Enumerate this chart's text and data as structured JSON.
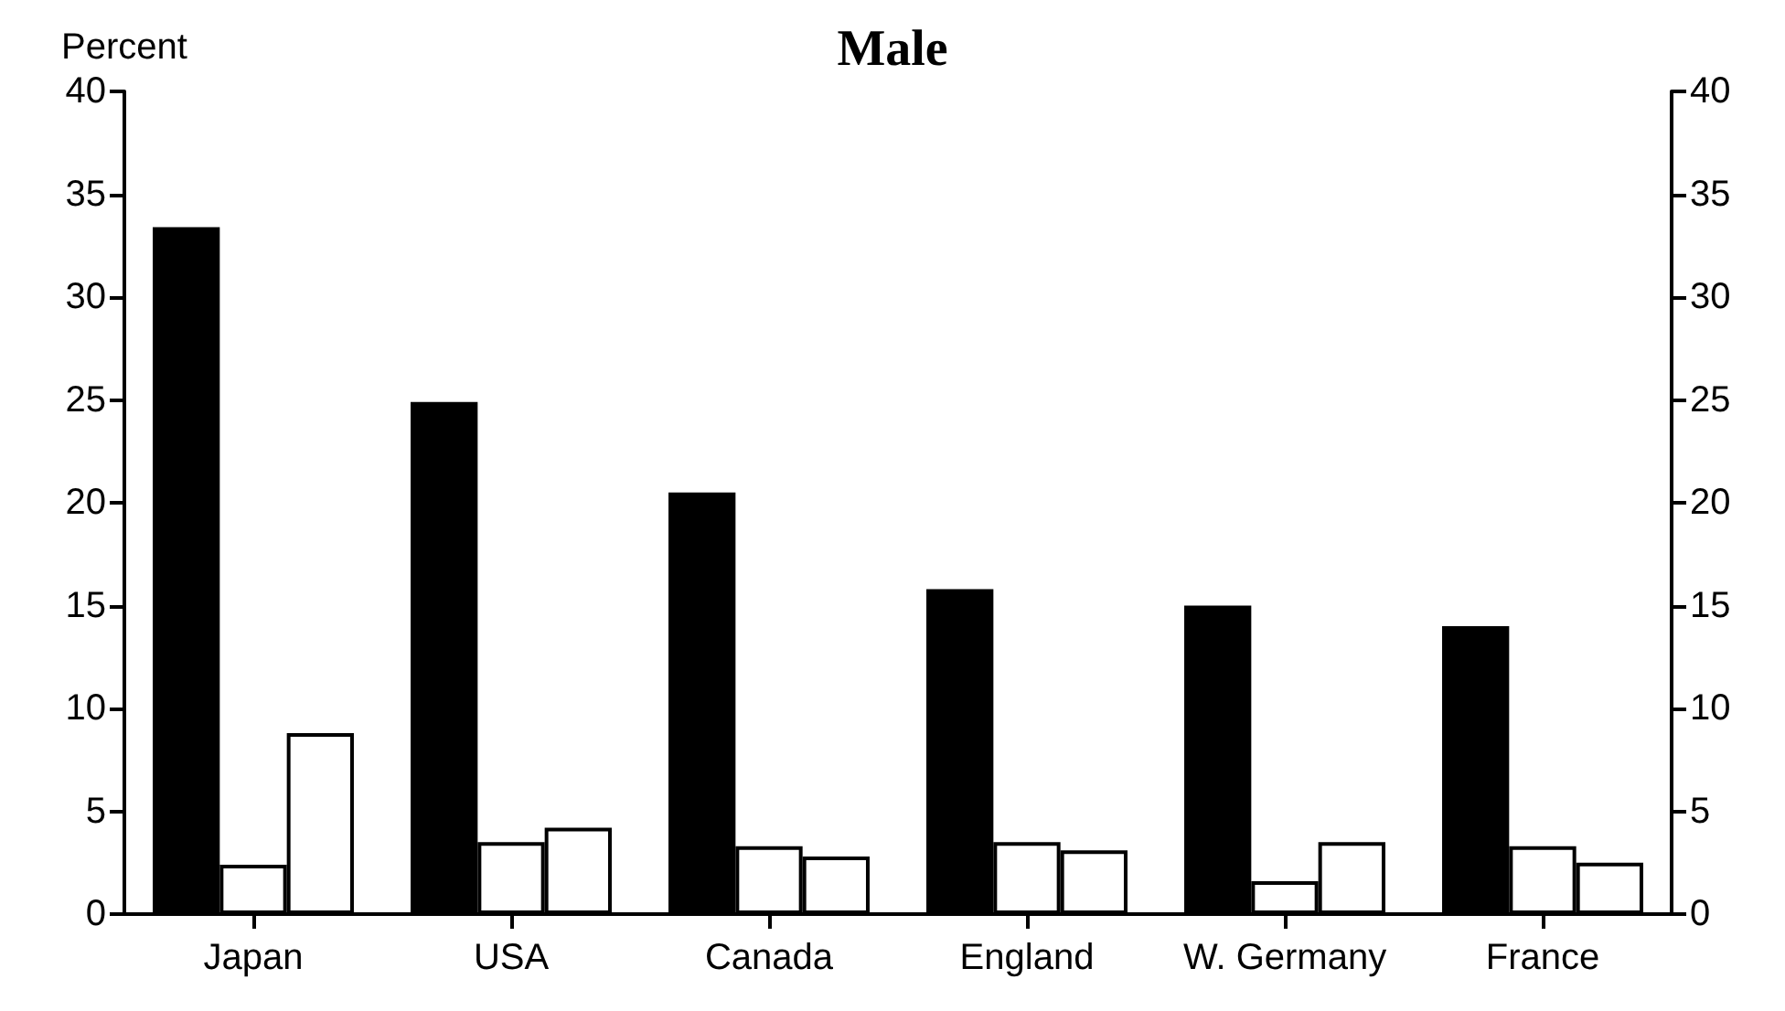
{
  "chart_data": {
    "type": "bar",
    "title": "Male",
    "ylabel": "Percent",
    "categories": [
      "Japan",
      "USA",
      "Canada",
      "England",
      "W. Germany",
      "France"
    ],
    "series": [
      {
        "color": "#000000",
        "values": [
          33.4,
          24.9,
          20.5,
          15.8,
          15.0,
          14.0
        ]
      },
      {
        "color": "#ffffff",
        "values": [
          2.4,
          3.5,
          3.3,
          3.5,
          1.6,
          3.3
        ]
      },
      {
        "color": "#ffffff",
        "values": [
          8.8,
          4.2,
          2.8,
          3.1,
          3.5,
          2.5
        ]
      }
    ],
    "ylim": [
      0,
      40
    ],
    "yticks": [
      0,
      5,
      10,
      15,
      20,
      25,
      30,
      35,
      40
    ],
    "y2lim": [
      0,
      40
    ],
    "y2ticks": [
      0,
      5,
      10,
      15,
      20,
      25,
      30,
      35,
      40
    ],
    "grid": false
  }
}
